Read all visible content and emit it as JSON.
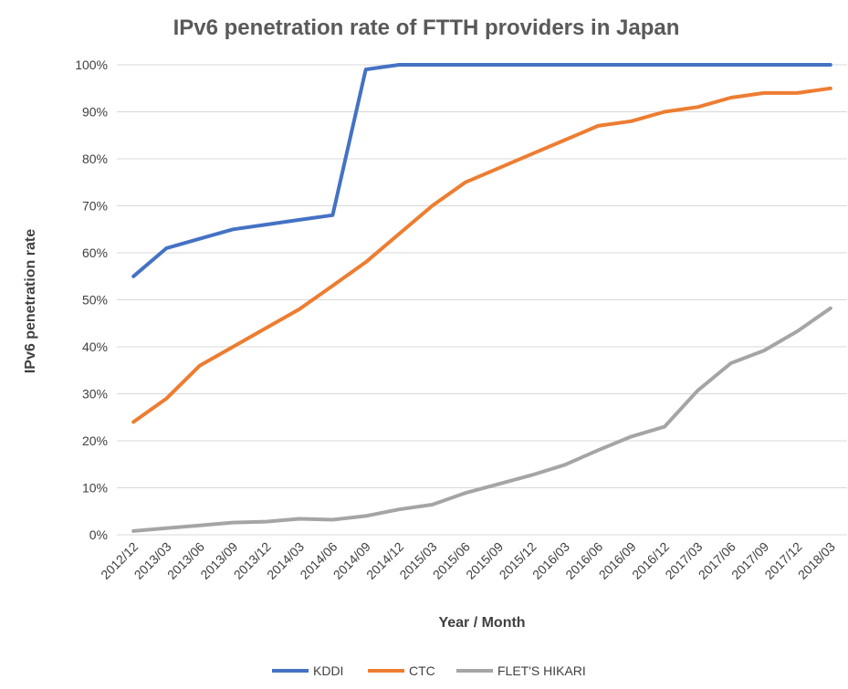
{
  "chart_data": {
    "type": "line",
    "title": "IPv6 penetration rate of FTTH providers in Japan",
    "xlabel": "Year / Month",
    "ylabel": "IPv6 penetration rate",
    "categories": [
      "2012/12",
      "2013/03",
      "2013/06",
      "2013/09",
      "2013/12",
      "2014/03",
      "2014/06",
      "2014/09",
      "2014/12",
      "2015/03",
      "2015/06",
      "2015/09",
      "2015/12",
      "2016/03",
      "2016/06",
      "2016/09",
      "2016/12",
      "2017/03",
      "2017/06",
      "2017/09",
      "2017/12",
      "2018/03"
    ],
    "ylim": [
      0,
      100
    ],
    "yticks": [
      0,
      10,
      20,
      30,
      40,
      50,
      60,
      70,
      80,
      90,
      100
    ],
    "ytick_labels": [
      "0%",
      "10%",
      "20%",
      "30%",
      "40%",
      "50%",
      "60%",
      "70%",
      "80%",
      "90%",
      "100%"
    ],
    "grid": true,
    "legend_position": "bottom",
    "series": [
      {
        "name": "KDDI",
        "color": "#4472c4",
        "values": [
          55,
          61,
          63,
          65,
          66,
          67,
          68,
          99,
          100,
          100,
          100,
          100,
          100,
          100,
          100,
          100,
          100,
          100,
          100,
          100,
          100,
          100
        ]
      },
      {
        "name": "CTC",
        "color": "#ed7d31",
        "values": [
          24,
          29,
          36,
          40,
          44,
          48,
          53,
          58,
          64,
          70,
          75,
          78,
          81,
          84,
          87,
          88,
          90,
          91,
          93,
          94,
          94,
          95
        ]
      },
      {
        "name": "FLET'S HIKARI",
        "color": "#a5a5a5",
        "values": [
          0.8,
          1.4,
          2.0,
          2.6,
          2.8,
          3.4,
          3.2,
          4.0,
          5.4,
          6.4,
          8.9,
          10.8,
          12.7,
          14.9,
          18.0,
          20.9,
          23.0,
          30.7,
          36.5,
          39.2,
          43.3,
          48.2
        ]
      }
    ]
  }
}
